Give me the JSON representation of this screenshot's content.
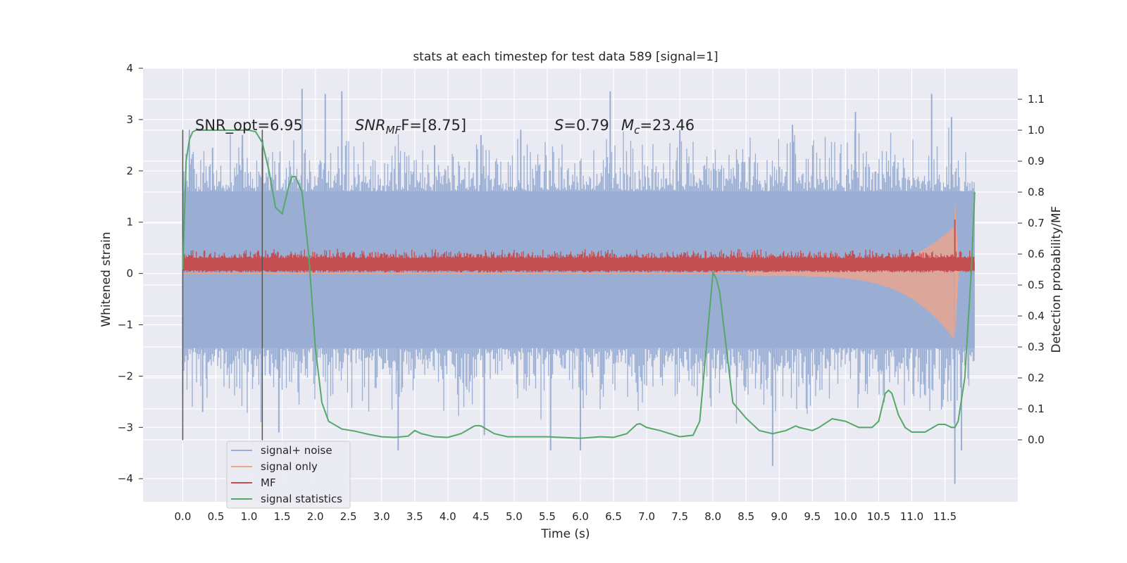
{
  "chart_data": {
    "type": "line",
    "title": "stats at each timestep for test data 589 [signal=1]",
    "xlabel": "Time (s)",
    "ylabel": "Whitened strain",
    "y2label": "Detection probability/MF",
    "xlim": [
      -0.6,
      12.6
    ],
    "ylim": [
      -4.45,
      4.0
    ],
    "y2lim": [
      -0.2,
      1.2
    ],
    "xticks": [
      "0.0",
      "0.5",
      "1.0",
      "1.5",
      "2.0",
      "2.5",
      "3.0",
      "3.5",
      "4.0",
      "4.5",
      "5.0",
      "5.5",
      "6.0",
      "6.5",
      "7.0",
      "7.5",
      "8.0",
      "8.5",
      "9.0",
      "9.5",
      "10.0",
      "10.5",
      "11.0",
      "11.5"
    ],
    "yticks": [
      "4",
      "3",
      "2",
      "1",
      "0",
      "−1",
      "−2",
      "−3",
      "−4"
    ],
    "y2ticks": [
      "1.1",
      "1.0",
      "0.9",
      "0.8",
      "0.7",
      "0.6",
      "0.5",
      "0.4",
      "0.3",
      "0.2",
      "0.1",
      "0.0"
    ],
    "grid": true,
    "legend_position": "lower-left",
    "annotations": {
      "snr_opt": "SNR_opt=6.95",
      "snr_mf_base": "SNR",
      "snr_mf_sub": "MF",
      "snr_mf_rest": "F=[8.75]",
      "s_italic": "S",
      "s_value": "=0.79",
      "mc_italic": "M",
      "mc_sub": "c",
      "mc_value": "=23.46"
    },
    "vertical_markers_x": [
      0.0,
      1.2
    ],
    "series": [
      {
        "name": "signal+ noise",
        "color": "#9aaed4",
        "kind": "noise-band",
        "x_range": [
          0.0,
          11.95
        ],
        "typical_range": [
          -1.45,
          1.6
        ],
        "peaks_up": [
          [
            0.1,
            2.8
          ],
          [
            0.45,
            2.45
          ],
          [
            0.9,
            2.7
          ],
          [
            1.8,
            3.6
          ],
          [
            2.15,
            3.5
          ],
          [
            2.4,
            3.55
          ],
          [
            3.8,
            2.5
          ],
          [
            4.5,
            2.7
          ],
          [
            5.1,
            2.8
          ],
          [
            6.45,
            3.55
          ],
          [
            7.5,
            2.8
          ],
          [
            9.2,
            2.9
          ],
          [
            10.15,
            3.15
          ],
          [
            11.3,
            3.5
          ],
          [
            11.6,
            3.05
          ]
        ],
        "peaks_down": [
          [
            0.3,
            -2.7
          ],
          [
            1.45,
            -3.1
          ],
          [
            3.25,
            -3.45
          ],
          [
            4.55,
            -3.15
          ],
          [
            5.55,
            -3.45
          ],
          [
            6.0,
            -3.45
          ],
          [
            8.9,
            -3.75
          ],
          [
            11.65,
            -4.1
          ],
          [
            11.75,
            -3.45
          ]
        ]
      },
      {
        "name": "signal only",
        "color": "#e8a58f",
        "kind": "chirp",
        "x_range": [
          0.0,
          11.95
        ],
        "merger_time": 11.65
      },
      {
        "name": "MF",
        "color": "#c44e52",
        "kind": "mf-band",
        "x_range": [
          0.0,
          11.95
        ],
        "typical_range": [
          0.02,
          0.3
        ],
        "peak": [
          11.65,
          1.05
        ]
      },
      {
        "name": "signal statistics",
        "color": "#55a868",
        "kind": "line",
        "axis": "right",
        "x": [
          0.0,
          0.05,
          0.1,
          0.15,
          0.2,
          0.3,
          0.5,
          0.8,
          1.0,
          1.1,
          1.2,
          1.3,
          1.4,
          1.5,
          1.6,
          1.65,
          1.7,
          1.8,
          1.9,
          2.0,
          2.1,
          2.2,
          2.4,
          2.6,
          2.8,
          3.0,
          3.2,
          3.4,
          3.5,
          3.6,
          3.8,
          4.0,
          4.2,
          4.4,
          4.45,
          4.5,
          4.7,
          4.9,
          5.0,
          5.5,
          6.0,
          6.3,
          6.5,
          6.7,
          6.85,
          6.9,
          7.0,
          7.2,
          7.5,
          7.7,
          7.8,
          7.9,
          8.0,
          8.05,
          8.1,
          8.2,
          8.3,
          8.5,
          8.7,
          8.9,
          9.1,
          9.25,
          9.3,
          9.5,
          9.6,
          9.8,
          10.0,
          10.2,
          10.4,
          10.5,
          10.6,
          10.65,
          10.7,
          10.8,
          10.9,
          11.0,
          11.2,
          11.4,
          11.5,
          11.6,
          11.65,
          11.7,
          11.8,
          11.9,
          11.95
        ],
        "y": [
          0.55,
          0.9,
          0.97,
          0.995,
          1.0,
          1.0,
          1.0,
          1.0,
          1.0,
          0.995,
          0.96,
          0.87,
          0.75,
          0.73,
          0.82,
          0.85,
          0.85,
          0.8,
          0.6,
          0.3,
          0.12,
          0.06,
          0.035,
          0.028,
          0.018,
          0.01,
          0.008,
          0.012,
          0.03,
          0.02,
          0.01,
          0.008,
          0.02,
          0.045,
          0.046,
          0.045,
          0.02,
          0.01,
          0.01,
          0.01,
          0.005,
          0.01,
          0.008,
          0.02,
          0.05,
          0.052,
          0.04,
          0.03,
          0.01,
          0.015,
          0.06,
          0.3,
          0.54,
          0.52,
          0.48,
          0.3,
          0.12,
          0.07,
          0.03,
          0.02,
          0.03,
          0.045,
          0.04,
          0.03,
          0.04,
          0.068,
          0.06,
          0.04,
          0.04,
          0.06,
          0.15,
          0.16,
          0.15,
          0.08,
          0.04,
          0.025,
          0.025,
          0.05,
          0.05,
          0.04,
          0.04,
          0.06,
          0.2,
          0.55,
          0.8
        ]
      }
    ]
  }
}
